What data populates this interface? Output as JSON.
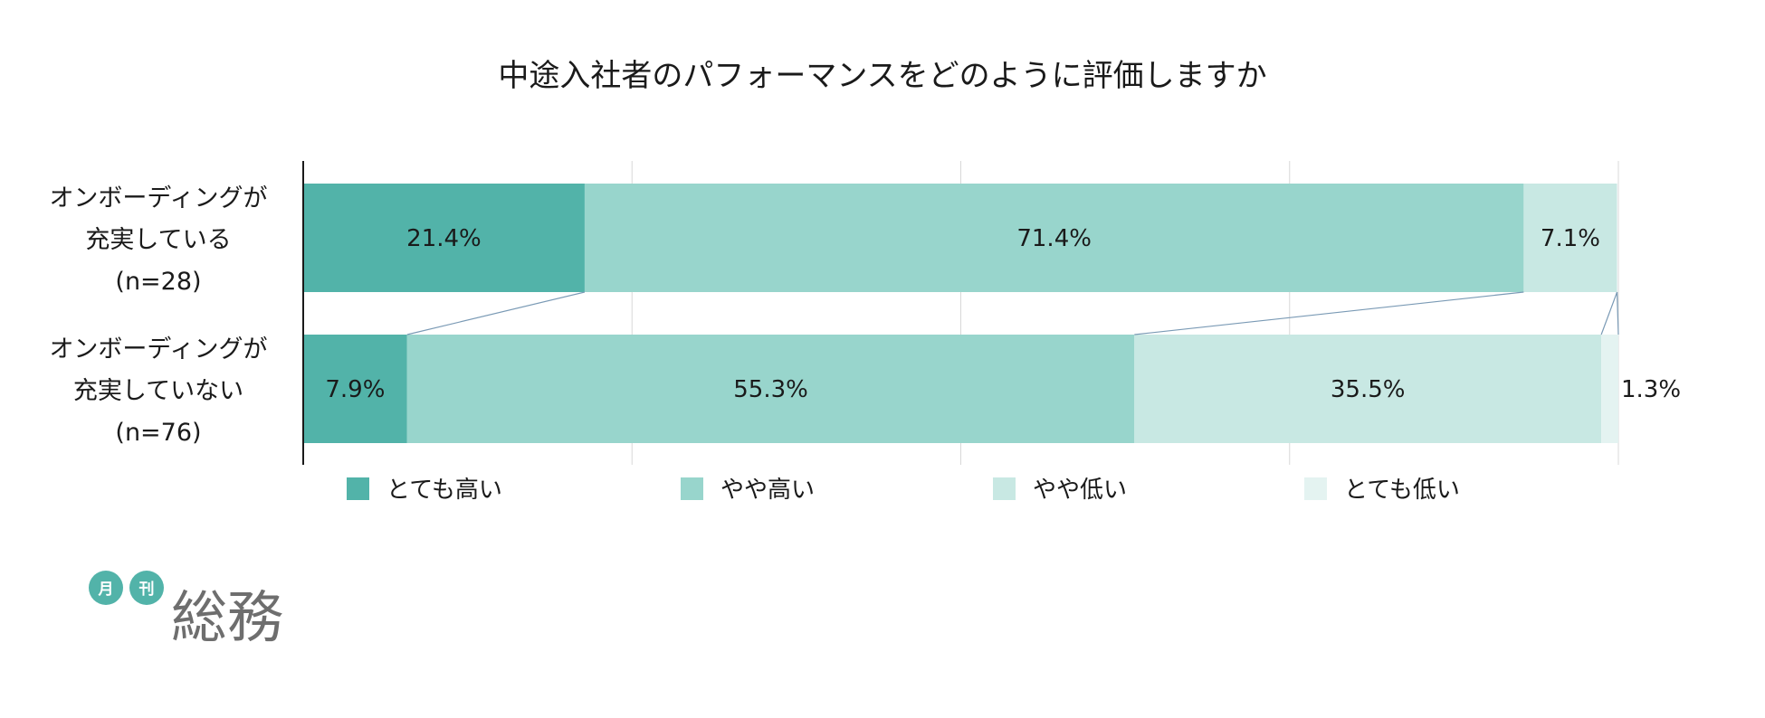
{
  "chart_data": {
    "type": "bar",
    "stacked": true,
    "orientation": "horizontal",
    "title": "中途入社者のパフォーマンスをどのように評価しますか",
    "categories": [
      [
        "オンボーディングが",
        "充実している",
        "(n=28)"
      ],
      [
        "オンボーディングが",
        "充実していない",
        "(n=76)"
      ]
    ],
    "series": [
      {
        "name": "とても高い",
        "color": "#52b3a9",
        "values": [
          21.4,
          7.9
        ],
        "value_labels": [
          "21.4%",
          "7.9%"
        ]
      },
      {
        "name": "やや高い",
        "color": "#98d5cc",
        "values": [
          71.4,
          55.3
        ],
        "value_labels": [
          "71.4%",
          "55.3%"
        ]
      },
      {
        "name": "やや低い",
        "color": "#c8e8e3",
        "values": [
          7.1,
          35.5
        ],
        "value_labels": [
          "7.1%",
          "35.5%"
        ]
      },
      {
        "name": "とても低い",
        "color": "#e4f3f1",
        "values": [
          0,
          1.3
        ],
        "value_labels": [
          "",
          "1.3%"
        ]
      }
    ],
    "xlim": [
      0,
      100
    ],
    "grid": true,
    "legend_position": "bottom",
    "series_lines": true
  },
  "logo": {
    "badge_1": "月",
    "badge_2": "刊",
    "wordmark": "総務",
    "badge_color": "#52b3a9",
    "wordmark_color": "#6e6e6e"
  }
}
